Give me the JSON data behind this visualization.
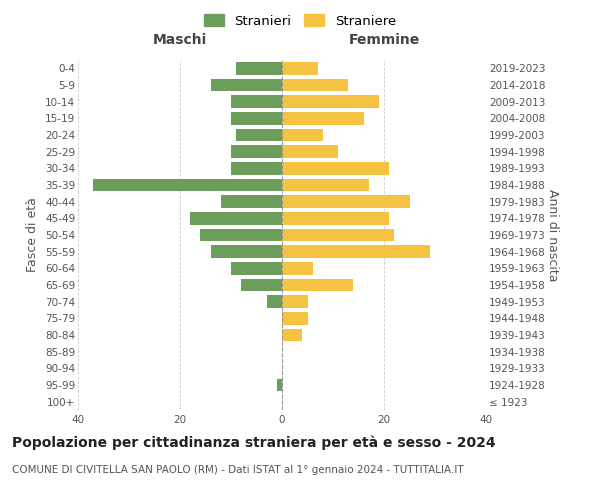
{
  "age_groups": [
    "100+",
    "95-99",
    "90-94",
    "85-89",
    "80-84",
    "75-79",
    "70-74",
    "65-69",
    "60-64",
    "55-59",
    "50-54",
    "45-49",
    "40-44",
    "35-39",
    "30-34",
    "25-29",
    "20-24",
    "15-19",
    "10-14",
    "5-9",
    "0-4"
  ],
  "birth_years": [
    "≤ 1923",
    "1924-1928",
    "1929-1933",
    "1934-1938",
    "1939-1943",
    "1944-1948",
    "1949-1953",
    "1954-1958",
    "1959-1963",
    "1964-1968",
    "1969-1973",
    "1974-1978",
    "1979-1983",
    "1984-1988",
    "1989-1993",
    "1994-1998",
    "1999-2003",
    "2004-2008",
    "2009-2013",
    "2014-2018",
    "2019-2023"
  ],
  "maschi": [
    0,
    1,
    0,
    0,
    0,
    0,
    3,
    8,
    10,
    14,
    16,
    18,
    12,
    37,
    10,
    10,
    9,
    10,
    10,
    14,
    9
  ],
  "femmine": [
    0,
    0,
    0,
    0,
    4,
    5,
    5,
    14,
    6,
    29,
    22,
    21,
    25,
    17,
    21,
    11,
    8,
    16,
    19,
    13,
    7
  ],
  "maschi_color": "#6a9e5a",
  "femmine_color": "#f5c242",
  "background_color": "#ffffff",
  "grid_color": "#cccccc",
  "title": "Popolazione per cittadinanza straniera per età e sesso - 2024",
  "subtitle": "COMUNE DI CIVITELLA SAN PAOLO (RM) - Dati ISTAT al 1° gennaio 2024 - TUTTITALIA.IT",
  "ylabel_left": "Fasce di età",
  "ylabel_right": "Anni di nascita",
  "xlabel_maschi": "Maschi",
  "xlabel_femmine": "Femmine",
  "legend_stranieri": "Stranieri",
  "legend_straniere": "Straniere",
  "xlim": 40,
  "title_fontsize": 10,
  "subtitle_fontsize": 7.5,
  "axis_label_fontsize": 9,
  "tick_fontsize": 7.5
}
